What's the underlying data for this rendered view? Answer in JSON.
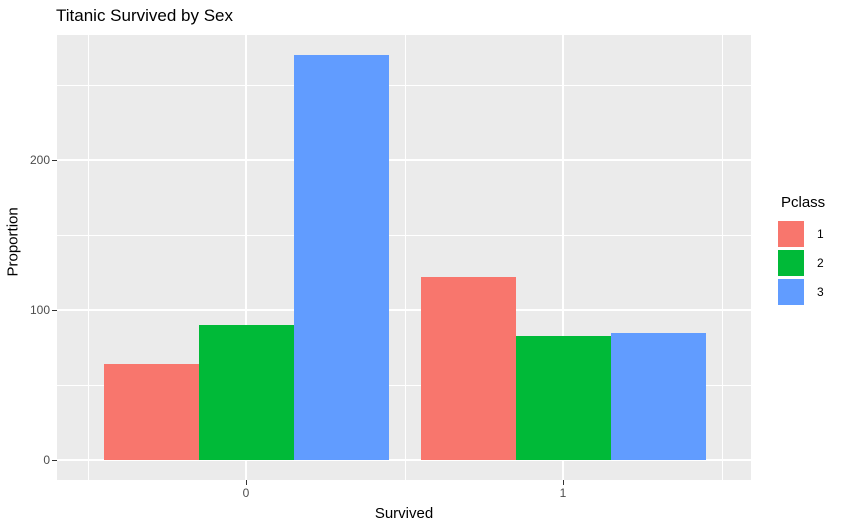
{
  "title": "Titanic Survived by Sex",
  "axes": {
    "x_label": "Survived",
    "y_label": "Proportion",
    "x_ticks": [
      "0",
      "1"
    ],
    "y_ticks": [
      "0",
      "100",
      "200"
    ]
  },
  "legend": {
    "title": "Pclass",
    "items": [
      {
        "label": "1",
        "color": "#F8766D"
      },
      {
        "label": "2",
        "color": "#00BA38"
      },
      {
        "label": "3",
        "color": "#619CFF"
      }
    ]
  },
  "colors": {
    "panel_background": "#EBEBEB",
    "gridline": "#FFFFFF",
    "tick_text": "#4D4D4D",
    "axis_text": "#000000"
  },
  "chart_data": {
    "type": "bar",
    "mode": "grouped-dodge",
    "title": "Titanic Survived by Sex",
    "xlabel": "Survived",
    "ylabel": "Proportion",
    "categories": [
      "0",
      "1"
    ],
    "series": [
      {
        "name": "1",
        "color": "#F8766D",
        "values": [
          64,
          122
        ]
      },
      {
        "name": "2",
        "color": "#00BA38",
        "values": [
          90,
          83
        ]
      },
      {
        "name": "3",
        "color": "#619CFF",
        "values": [
          270,
          85
        ]
      }
    ],
    "y_axis": {
      "ticks": [
        0,
        100,
        200
      ],
      "minor_ticks": [
        50,
        150,
        250
      ],
      "range": [
        -13.5,
        284
      ]
    },
    "x_axis": {
      "major_gridlines": [
        0,
        1
      ],
      "minor_gridlines": [
        -0.5,
        0.5,
        1.5
      ]
    },
    "legend_title": "Pclass",
    "legend_position": "right",
    "grid": true
  }
}
